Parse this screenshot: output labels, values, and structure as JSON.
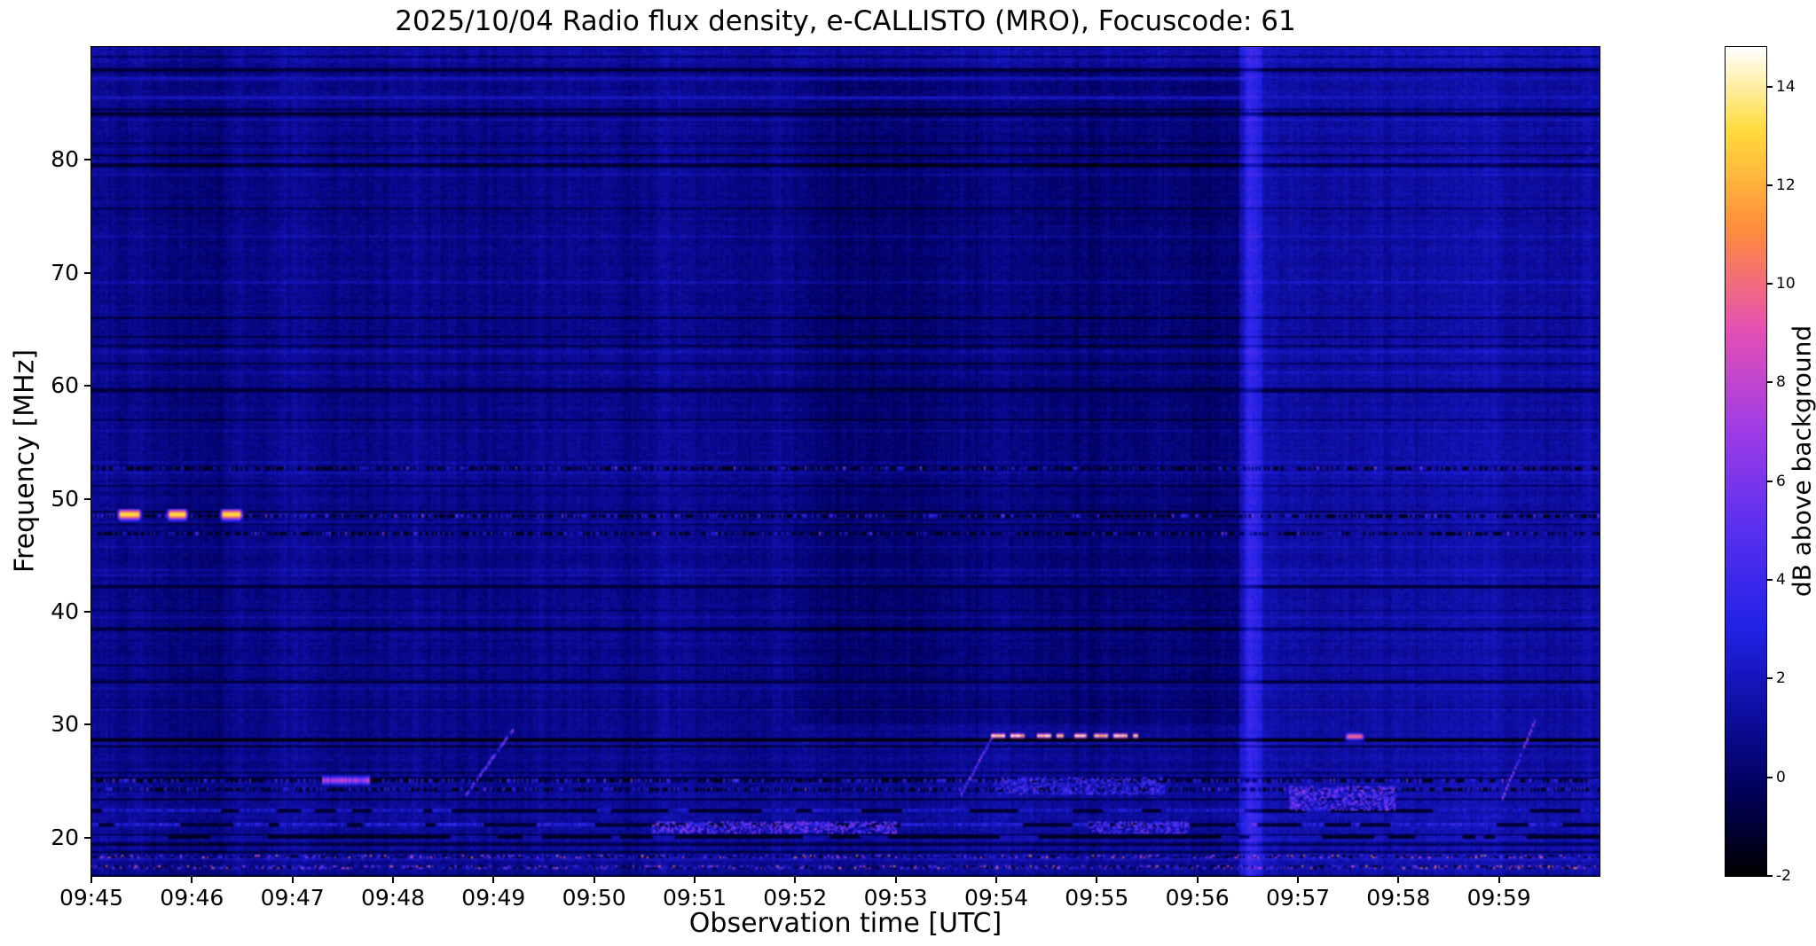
{
  "chart_data": {
    "type": "heatmap",
    "title": "2025/10/04  Radio flux density, e-CALLISTO (MRO), Focuscode: 61",
    "xlabel": "Observation time [UTC]",
    "ylabel": "Frequency [MHz]",
    "x_ticks": [
      "09:45",
      "09:46",
      "09:47",
      "09:48",
      "09:49",
      "09:50",
      "09:51",
      "09:52",
      "09:53",
      "09:54",
      "09:55",
      "09:56",
      "09:57",
      "09:58",
      "09:59"
    ],
    "x_range_seconds": [
      0,
      900
    ],
    "y_ticks": [
      20,
      30,
      40,
      50,
      60,
      70,
      80
    ],
    "y_range_mhz": [
      16.6,
      90.0
    ],
    "grid": false,
    "colorbar": {
      "label": "dB above background",
      "ticks": [
        -2,
        0,
        2,
        4,
        6,
        8,
        10,
        12,
        14
      ],
      "range": [
        -2,
        14.8
      ]
    },
    "background_level_db": 0.85,
    "colormap_stops": [
      {
        "t": 0.0,
        "c": "#000000"
      },
      {
        "t": 0.1,
        "c": "#00005a"
      },
      {
        "t": 0.18,
        "c": "#0b0b96"
      },
      {
        "t": 0.3,
        "c": "#2222e6"
      },
      {
        "t": 0.42,
        "c": "#5a30f0"
      },
      {
        "t": 0.54,
        "c": "#a03ce6"
      },
      {
        "t": 0.66,
        "c": "#e650b4"
      },
      {
        "t": 0.78,
        "c": "#ff8c3c"
      },
      {
        "t": 0.9,
        "c": "#ffdc3c"
      },
      {
        "t": 1.0,
        "c": "#ffffff"
      }
    ],
    "features": [
      {
        "type": "region",
        "t0": 690,
        "t1": 900,
        "f0": 16.6,
        "f1": 90,
        "db": 0.5,
        "note": "smoother slightly brighter background after ~09:56:30"
      },
      {
        "type": "region",
        "t0": 420,
        "t1": 688,
        "f0": 30,
        "f1": 88,
        "db": -0.55,
        "note": "darker background 09:52-09:56 at higher frequencies"
      },
      {
        "type": "region",
        "t0": 0,
        "t1": 900,
        "f0": 88.6,
        "f1": 90,
        "db": 0.4
      },
      {
        "type": "rfi-line",
        "f": 48.5,
        "db": 2.6,
        "style": "dotted",
        "note": "intermittent RFI line at 48.5 MHz"
      },
      {
        "type": "rfi-line",
        "f": 52.6,
        "db": 1.5,
        "style": "dotted"
      },
      {
        "type": "rfi-line",
        "f": 46.9,
        "db": 1.3,
        "style": "dotted"
      },
      {
        "type": "rfi-line",
        "f": 28.55,
        "db": -1.9,
        "style": "dark",
        "note": "dark horizontal line ~28.6 MHz"
      },
      {
        "type": "rfi-line",
        "f": 42.2,
        "db": -0.9,
        "style": "dark"
      },
      {
        "type": "rfi-line",
        "f": 59.5,
        "db": -0.8,
        "style": "dark"
      },
      {
        "type": "rfi-line",
        "f": 33.8,
        "db": -0.8,
        "style": "dark"
      },
      {
        "type": "rfi-line",
        "f": 84.2,
        "db": -1.2,
        "style": "dark"
      },
      {
        "type": "rfi-line",
        "f": 85.6,
        "db": 2.3,
        "style": "solid"
      },
      {
        "type": "rfi-line",
        "f": 87.3,
        "db": 2.1,
        "style": "solid"
      },
      {
        "type": "rfi-line",
        "f": 88.1,
        "db": -1.0,
        "style": "dark"
      },
      {
        "type": "rfi-line",
        "f": 25.0,
        "db": 3.0,
        "style": "dotted"
      },
      {
        "type": "rfi-line",
        "f": 24.2,
        "db": 2.3,
        "style": "dotted"
      },
      {
        "type": "rfi-line",
        "f": 22.3,
        "db": 2.6,
        "style": "blotchy"
      },
      {
        "type": "rfi-line",
        "f": 21.0,
        "db": 3.4,
        "style": "blotchy"
      },
      {
        "type": "rfi-line",
        "f": 19.9,
        "db": -1.4,
        "style": "dark-blotchy"
      },
      {
        "type": "rfi-line",
        "f": 18.2,
        "db": 4.5,
        "style": "speckle"
      },
      {
        "type": "rfi-line",
        "f": 17.3,
        "db": 3.8,
        "style": "speckle"
      },
      {
        "type": "patch",
        "t0": 335,
        "t1": 480,
        "f0": 20.3,
        "f1": 21.3,
        "db": 6,
        "note": "bright blotches ~20.7 MHz 09:50.5-09:53"
      },
      {
        "type": "patch",
        "t0": 596,
        "t1": 655,
        "f0": 20.3,
        "f1": 21.3,
        "db": 5.5
      },
      {
        "type": "patch",
        "t0": 540,
        "t1": 640,
        "f0": 23.8,
        "f1": 25.2,
        "db": 4.5
      },
      {
        "type": "patch",
        "t0": 716,
        "t1": 778,
        "f0": 22.4,
        "f1": 24.4,
        "db": 6,
        "note": "bright violet patch ~23 MHz after 09:57"
      },
      {
        "type": "point-burst",
        "t0": 15,
        "t1": 30,
        "f0": 48.1,
        "f1": 49.1,
        "db": 13.5,
        "note": "bright burst on 48.5 MHz line"
      },
      {
        "type": "point-burst",
        "t0": 44,
        "t1": 57,
        "f0": 48.1,
        "f1": 49.1,
        "db": 13.5
      },
      {
        "type": "point-burst",
        "t0": 76,
        "t1": 90,
        "f0": 48.1,
        "f1": 49.1,
        "db": 13.5
      },
      {
        "type": "band-burst",
        "t0": 138,
        "t1": 165,
        "f0": 24.6,
        "f1": 25.4,
        "db": 7.5,
        "note": "orange RFI segment at 25 MHz ~09:47.4"
      },
      {
        "type": "drift",
        "t0": 224,
        "t1": 251,
        "f0": 23.8,
        "f1": 29.5,
        "db": 8,
        "note": "drifting burst rising 24-29.5 MHz near 09:49"
      },
      {
        "type": "drift",
        "t0": 519,
        "t1": 537,
        "f0": 23.8,
        "f1": 28.8,
        "db": 8.5
      },
      {
        "type": "drift",
        "t0": 843,
        "t1": 862,
        "f0": 23.5,
        "f1": 30.2,
        "db": 9,
        "note": "drifting burst near 09:59.3"
      },
      {
        "type": "dashed-burst",
        "t0": 537,
        "t1": 624,
        "f0": 28.7,
        "f1": 29.3,
        "db": 13.5,
        "note": "strong dashed emission ~29 MHz 09:53.9-09:55.4"
      },
      {
        "type": "point-burst",
        "t0": 748,
        "t1": 760,
        "f0": 28.6,
        "f1": 29.2,
        "db": 10.5,
        "note": "short burst ~29 MHz at 09:57.5"
      },
      {
        "type": "vertical-band",
        "t0": 686,
        "t1": 699,
        "f0": 16.6,
        "f1": 90,
        "db": 2.3,
        "note": "bright blue vertical stripe ~09:56:28"
      }
    ]
  }
}
